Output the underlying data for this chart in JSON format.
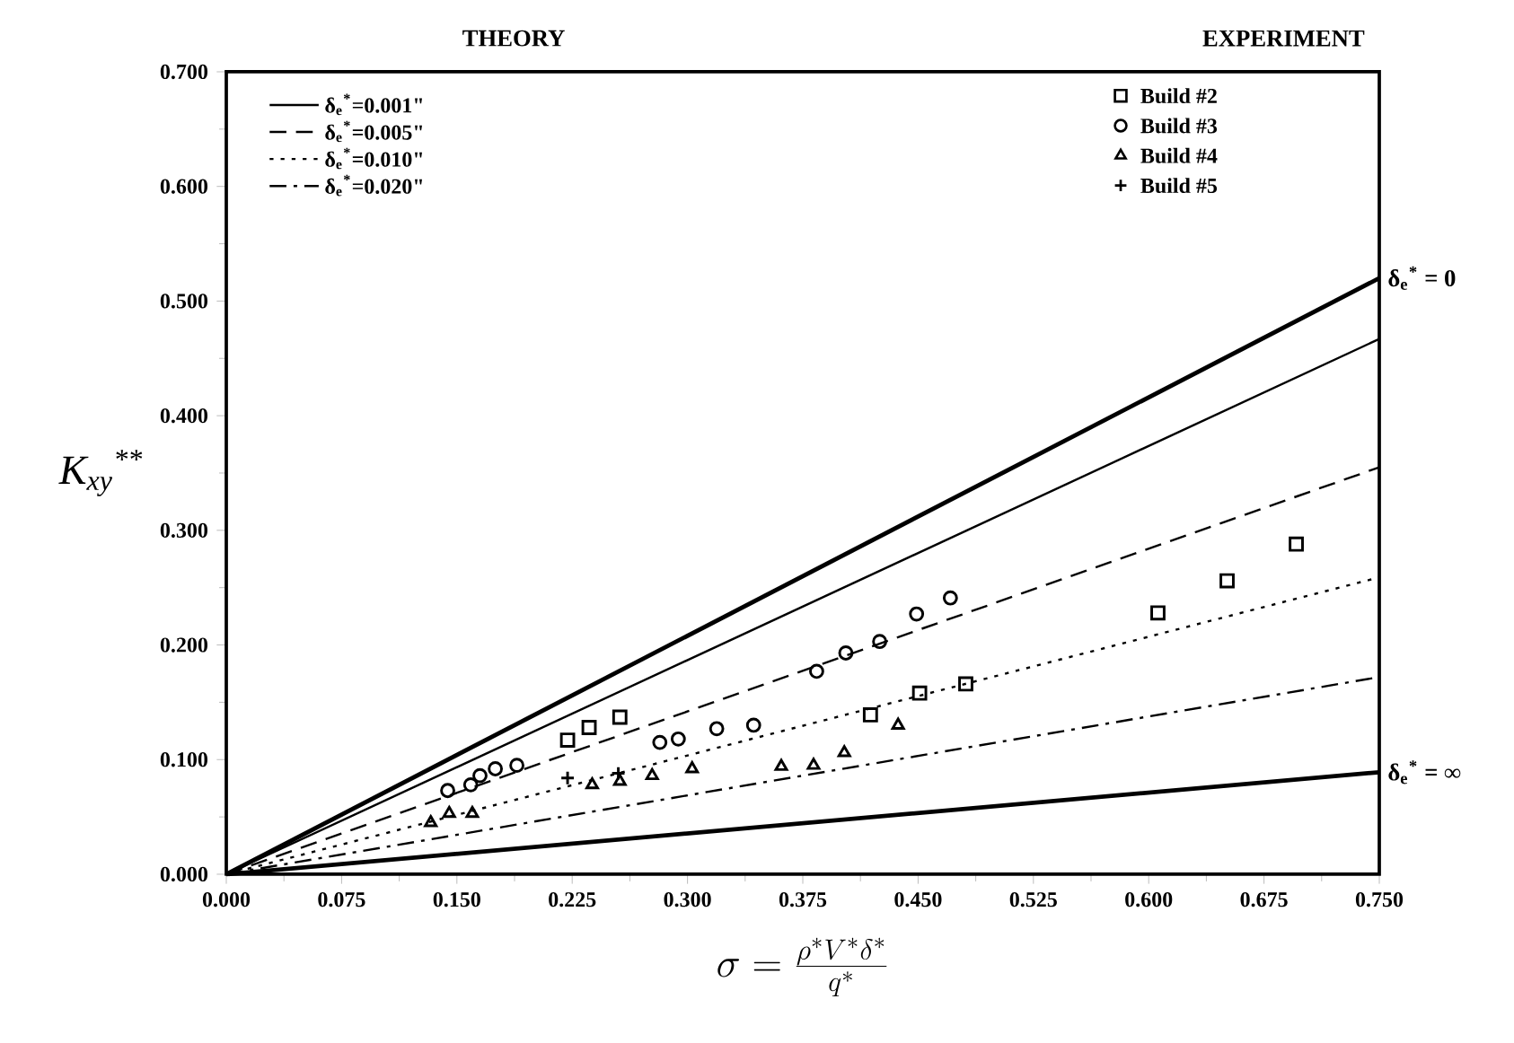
{
  "chart_data": {
    "type": "line",
    "xlabel": "\\sigma = \\frac{\\rho^{*} V^{*} \\delta^{*}}{q^{*}}",
    "ylabel": "K$_{xy}$$^{**}$",
    "xlim": [
      0,
      0.75
    ],
    "ylim": [
      0,
      0.7
    ],
    "xticks": [
      {
        "value": 0,
        "label": "0.000"
      },
      {
        "value": 0.075,
        "label": "0.075"
      },
      {
        "value": 0.15,
        "label": "0.150"
      },
      {
        "value": 0.225,
        "label": "0.225"
      },
      {
        "value": 0.3,
        "label": "0.300"
      },
      {
        "value": 0.375,
        "label": "0.375"
      },
      {
        "value": 0.45,
        "label": "0.450"
      },
      {
        "value": 0.525,
        "label": "0.525"
      },
      {
        "value": 0.6,
        "label": "0.600"
      },
      {
        "value": 0.675,
        "label": "0.675"
      },
      {
        "value": 0.75,
        "label": "0.750"
      }
    ],
    "yticks": [
      {
        "value": 0,
        "label": "0.000"
      },
      {
        "value": 0.1,
        "label": "0.100"
      },
      {
        "value": 0.2,
        "label": "0.200"
      },
      {
        "value": 0.3,
        "label": "0.300"
      },
      {
        "value": 0.4,
        "label": "0.400"
      },
      {
        "value": 0.5,
        "label": "0.500"
      },
      {
        "value": 0.6,
        "label": "0.600"
      },
      {
        "value": 0.7,
        "label": "0.700"
      }
    ],
    "legend": "top",
    "annotations": [
      "THEORY",
      "EXPERIMENT",
      {
        "text": "δ$_{e}$$^{*}$ = 0",
        "x": 0.75,
        "y": 0.52
      },
      {
        "text": "δ$_{e}$$^{*}$ = ∞",
        "x": 0.75,
        "y": 0.089
      }
    ],
    "series": [
      {
        "color": "#000000",
        "line_style": "solid",
        "x": [
          0,
          0.75
        ],
        "values": [
          0,
          0.52
        ]
      },
      {
        "name": "δ$_{e}$$^{*}$=0.001\"",
        "color": "#000000",
        "line_style": "solid",
        "x": [
          0,
          0.75
        ],
        "values": [
          0,
          0.467
        ]
      },
      {
        "name": "δ$_{e}$$^{*}$=0.005\"",
        "color": "#000000",
        "line_style": "dashed",
        "x": [
          0,
          0.75
        ],
        "values": [
          0,
          0.355
        ]
      },
      {
        "name": "δ$_{e}$$^{*}$=0.010\"",
        "color": "#000000",
        "line_style": "dotted",
        "x": [
          0,
          0.75
        ],
        "values": [
          0,
          0.259
        ]
      },
      {
        "name": "δ$_{e}$$^{*}$=0.020\"",
        "color": "#000000",
        "line_style": "dashdot",
        "x": [
          0,
          0.75
        ],
        "values": [
          0,
          0.172
        ]
      },
      {
        "color": "#000000",
        "line_style": "solid",
        "x": [
          0,
          0.75
        ],
        "values": [
          0,
          0.089
        ]
      },
      {
        "type": "scatter",
        "name": "Build #2",
        "color": "#000000",
        "marker": "square",
        "x": [
          0.222,
          0.236,
          0.256,
          0.419,
          0.451,
          0.481,
          0.606,
          0.651,
          0.696
        ],
        "values": [
          0.117,
          0.128,
          0.137,
          0.139,
          0.158,
          0.166,
          0.228,
          0.256,
          0.288
        ]
      },
      {
        "type": "scatter",
        "name": "Build #3",
        "color": "#000000",
        "marker": "circle",
        "x": [
          0.144,
          0.159,
          0.165,
          0.175,
          0.189,
          0.282,
          0.294,
          0.319,
          0.343,
          0.384,
          0.403,
          0.425,
          0.449,
          0.471
        ],
        "values": [
          0.073,
          0.078,
          0.086,
          0.092,
          0.095,
          0.115,
          0.118,
          0.127,
          0.13,
          0.177,
          0.193,
          0.203,
          0.227,
          0.241
        ]
      },
      {
        "type": "scatter",
        "name": "Build #4",
        "color": "#000000",
        "marker": "triangle",
        "x": [
          0.133,
          0.145,
          0.16,
          0.238,
          0.256,
          0.277,
          0.303,
          0.361,
          0.382,
          0.402,
          0.437
        ],
        "values": [
          0.045,
          0.053,
          0.053,
          0.078,
          0.081,
          0.086,
          0.092,
          0.094,
          0.095,
          0.106,
          0.13
        ]
      },
      {
        "type": "scatter",
        "name": "Build #5",
        "color": "#000000",
        "marker": "cross",
        "x": [
          0.222,
          0.255
        ],
        "values": [
          0.084,
          0.088
        ]
      }
    ]
  }
}
